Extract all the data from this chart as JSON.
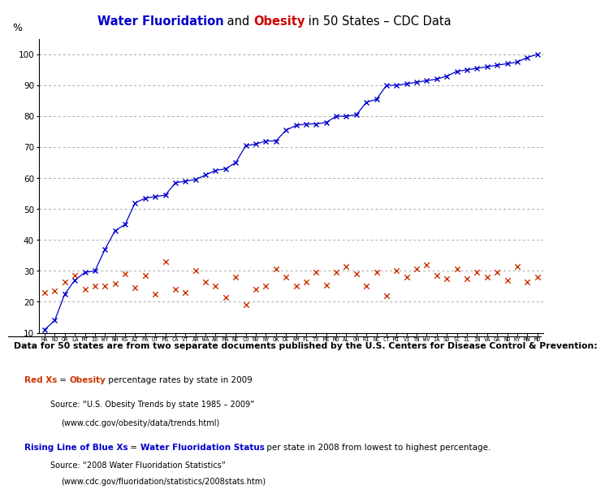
{
  "states": [
    "HA",
    "NJ",
    "OR",
    "LA",
    "MT",
    "ID",
    "WY",
    "NH",
    "KS",
    "AZ",
    "PA",
    "UT",
    "MS",
    "CA",
    "VT",
    "AR",
    "WA",
    "AK",
    "MA",
    "NE",
    "CO",
    "NV",
    "NY",
    "OK",
    "DE",
    "NM",
    "FL",
    "TX",
    "ME",
    "MO",
    "AL",
    "OH",
    "RI",
    "NC",
    "CT",
    "MI",
    "VI",
    "TN",
    "WV",
    "IA",
    "SD",
    "SC",
    "IL",
    "IN",
    "VA",
    "GA",
    "ND",
    "KY",
    "MN",
    "MD"
  ],
  "fluoridation": [
    11.0,
    14.0,
    22.5,
    27.0,
    29.5,
    30.0,
    37.0,
    43.0,
    45.0,
    52.0,
    53.5,
    54.0,
    54.5,
    58.5,
    59.0,
    59.5,
    61.0,
    62.5,
    63.0,
    65.0,
    70.5,
    71.0,
    72.0,
    72.0,
    75.5,
    77.0,
    77.5,
    77.5,
    78.0,
    80.0,
    80.0,
    80.5,
    84.5,
    85.5,
    90.0,
    90.0,
    90.5,
    91.0,
    91.5,
    92.0,
    93.0,
    94.5,
    95.0,
    95.5,
    96.0,
    96.5,
    97.0,
    97.5,
    99.0,
    100.0
  ],
  "obesity": [
    23.0,
    23.5,
    26.5,
    28.5,
    24.0,
    25.0,
    25.0,
    26.0,
    29.0,
    24.5,
    28.5,
    22.5,
    33.0,
    24.0,
    23.0,
    30.0,
    26.5,
    25.0,
    21.5,
    28.0,
    19.0,
    24.0,
    25.0,
    30.5,
    28.0,
    25.0,
    26.5,
    29.5,
    25.5,
    29.5,
    31.5,
    29.0,
    25.0,
    29.5,
    22.0,
    30.0,
    28.0,
    30.5,
    32.0,
    28.5,
    27.5,
    30.5,
    27.5,
    29.5,
    28.0,
    29.5,
    27.0,
    31.5,
    26.5,
    28.0
  ],
  "line_color": "#0000CC",
  "scatter_color": "#CC3300",
  "bg_color": "#FFFFFF",
  "grid_color": "#AAAAAA",
  "ylim": [
    10,
    105
  ],
  "yticks": [
    10,
    20,
    30,
    40,
    50,
    60,
    70,
    80,
    90,
    100
  ],
  "title_blue": "Water Fluoridation",
  "title_mid": " and ",
  "title_red": "Obesity",
  "title_end": " in 50 States – CDC Data",
  "title_fontsize": 10.5,
  "ylabel": "%",
  "data_note": "Data for 50 states are from two separate documents published by the U.S. Centers for Disease Control & Prevention:",
  "ann1_bold1": "Red Xs",
  "ann1_eq": " = ",
  "ann1_bold2": "Obesity",
  "ann1_rest": " percentage rates by state in 2009",
  "ann1_src1": "Source: “U.S. Obesity Trends by state 1985 – 2009”",
  "ann1_src2": "(www.cdc.gov/obesity/data/trends.html)",
  "ann2_bold1": "Rising Line of Blue Xs",
  "ann2_eq": " = ",
  "ann2_bold2": "Water Fluoridation Status",
  "ann2_rest": " per state in 2008 from lowest to highest percentage.",
  "ann2_src1": "Source: “2008 Water Fluoridation Statistics”",
  "ann2_src2": "(www.cdc.gov/fluoridation/statistics/2008stats.htm)"
}
